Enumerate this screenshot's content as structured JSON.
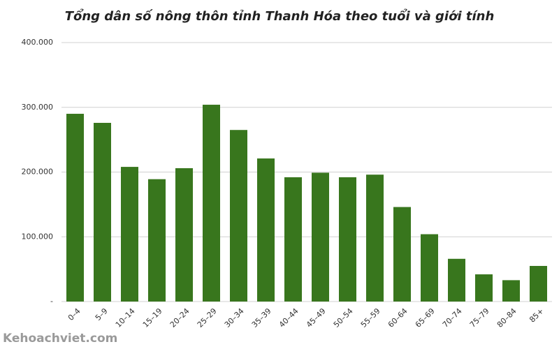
{
  "chart_data": {
    "type": "bar",
    "title": "Tổng dân số nông thôn tỉnh Thanh Hóa theo tuổi và giới tính",
    "categories": [
      "0–4",
      "5–9",
      "10–14",
      "15–19",
      "20–24",
      "25–29",
      "30–34",
      "35–39",
      "40–44",
      "45–49",
      "50–54",
      "55–59",
      "60–64",
      "65–69",
      "70–74",
      "75–79",
      "80–84",
      "85+"
    ],
    "values": [
      290000,
      276000,
      208000,
      189000,
      206000,
      304000,
      265000,
      221000,
      192000,
      199000,
      192000,
      196000,
      146000,
      104000,
      66000,
      42000,
      33000,
      55000
    ],
    "color": "#38761d",
    "ylim": [
      0,
      400000
    ],
    "yticks": [
      {
        "value": 0,
        "label": "-"
      },
      {
        "value": 100000,
        "label": "100.000"
      },
      {
        "value": 200000,
        "label": "200.000"
      },
      {
        "value": 300000,
        "label": "300.000"
      },
      {
        "value": 400000,
        "label": "400.000"
      }
    ],
    "grid": true,
    "watermark": "Kehoachviet.com"
  }
}
